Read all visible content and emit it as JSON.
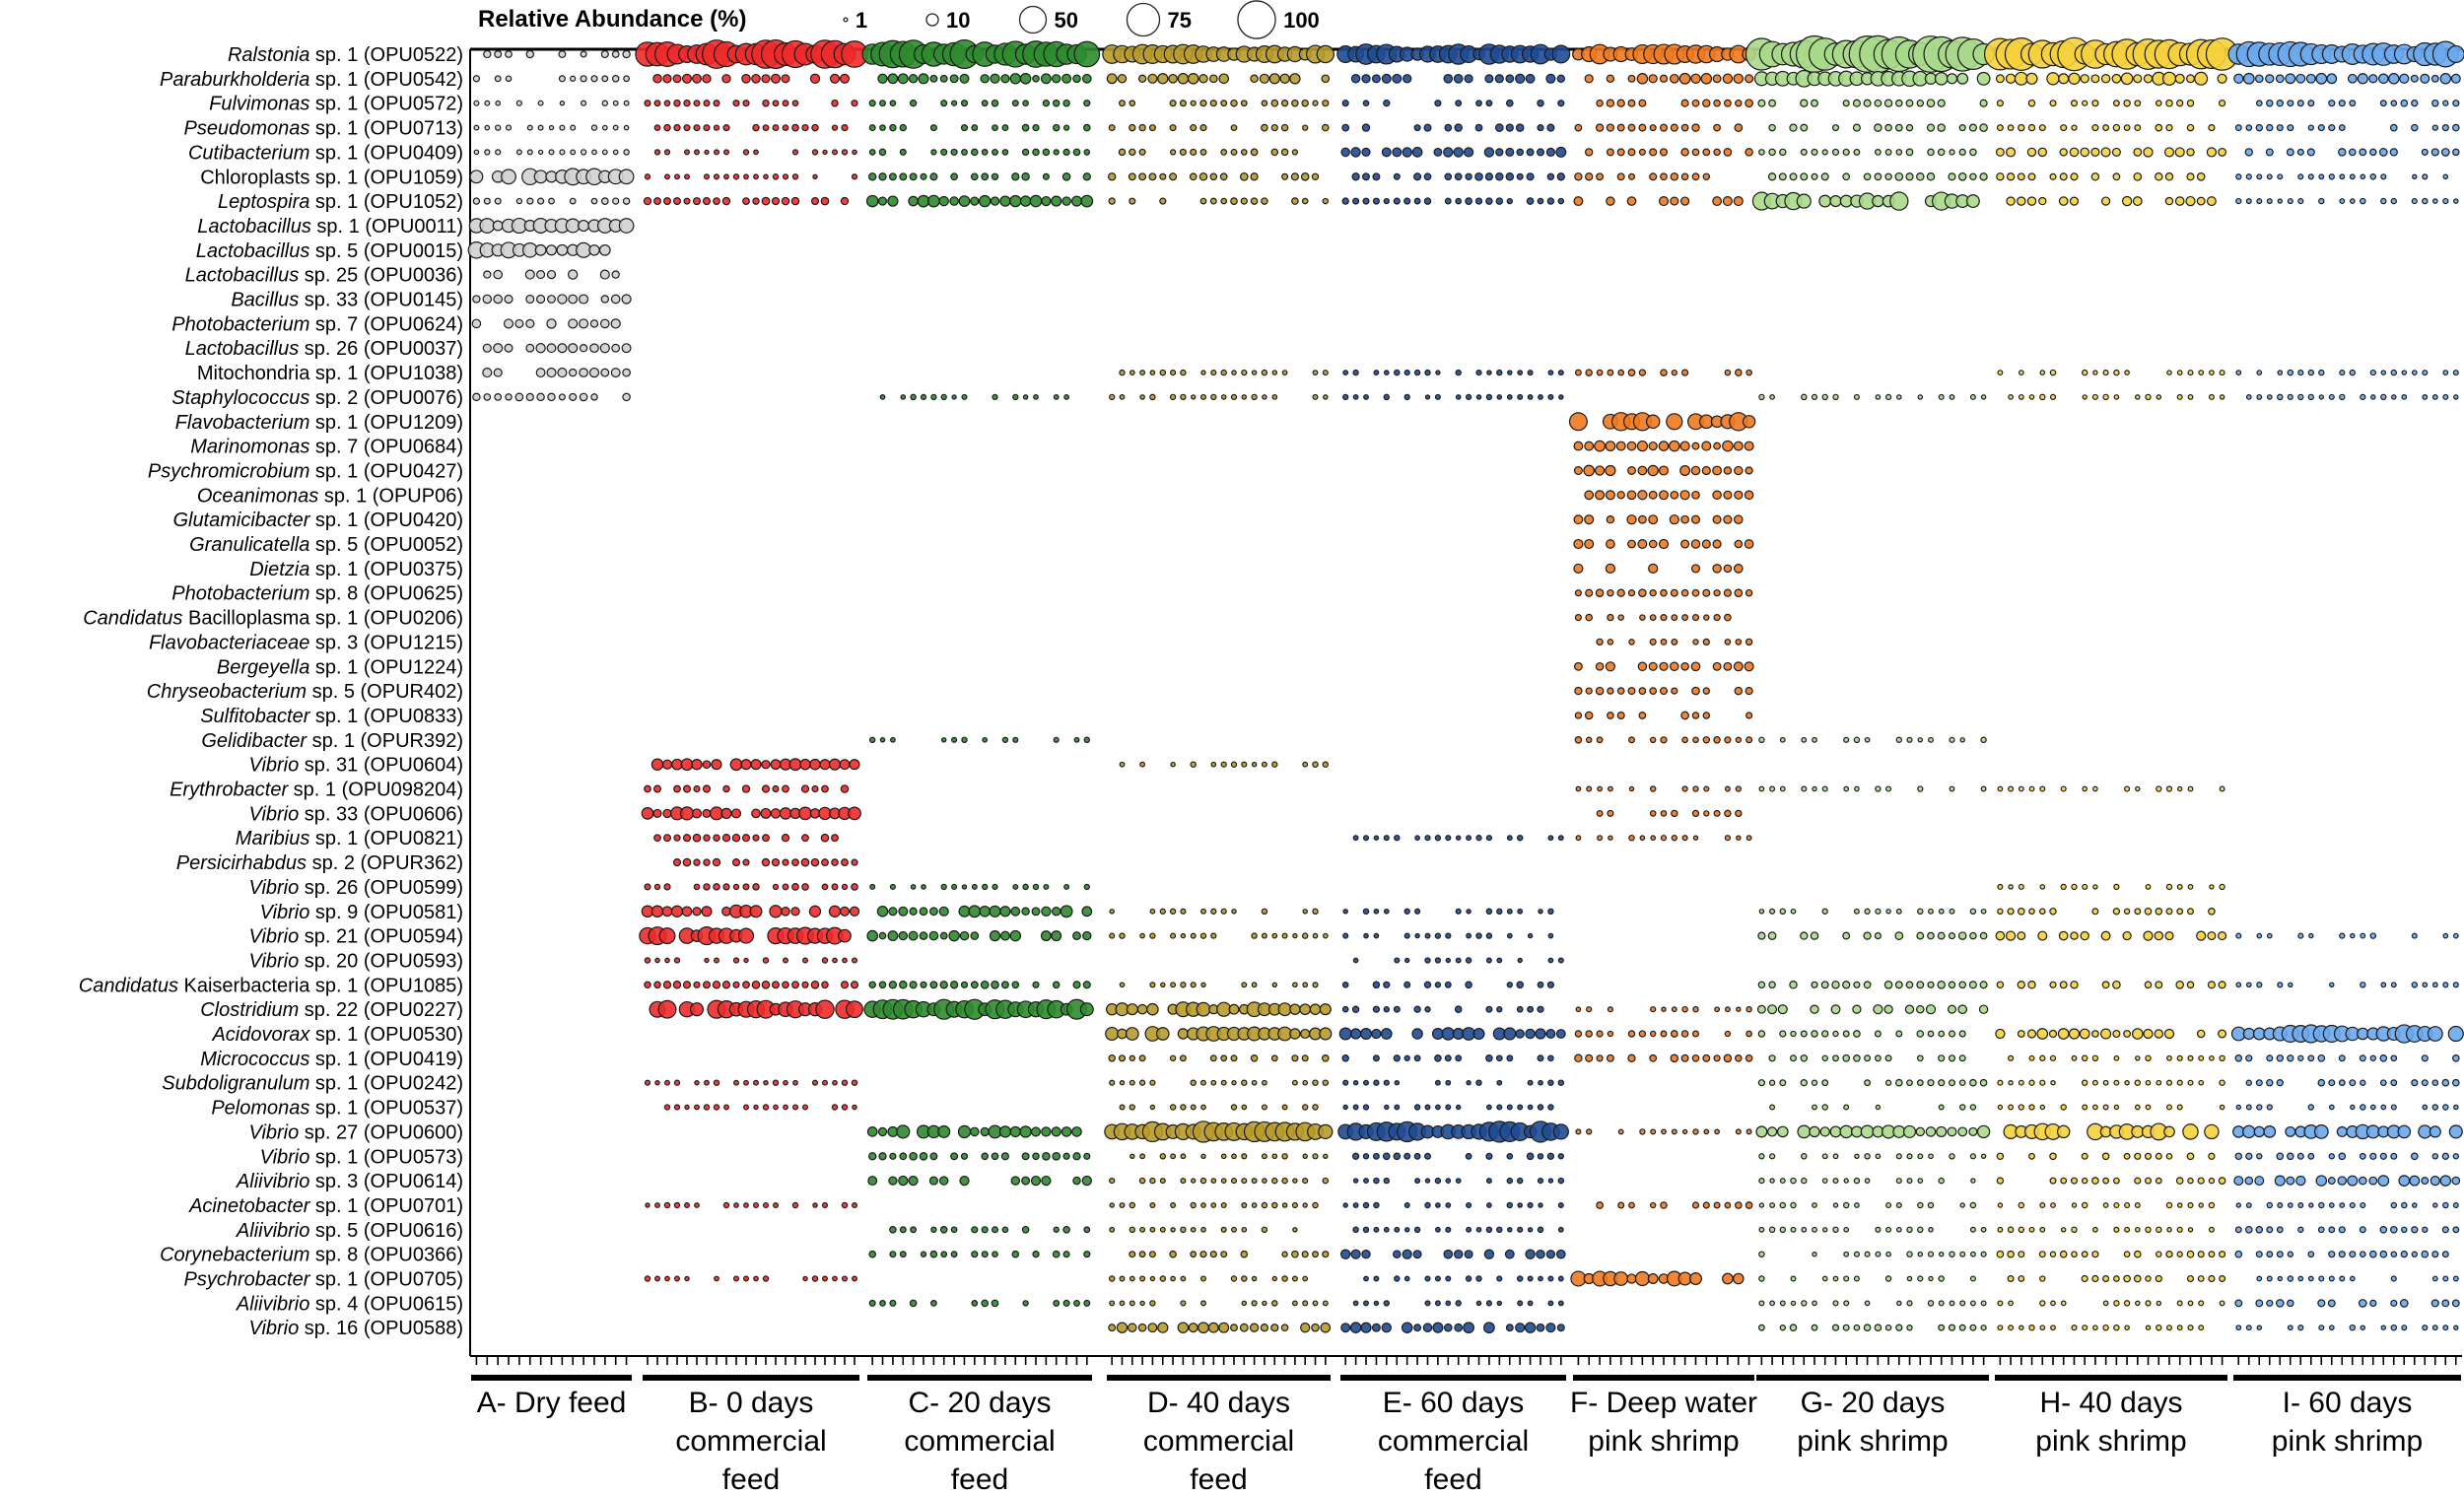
{
  "chart_data": {
    "type": "bubble",
    "legend": {
      "title": "Relative Abundance (%)",
      "sizes": [
        1,
        10,
        50,
        75,
        100
      ],
      "placement": "top"
    },
    "groups": [
      {
        "id": "A",
        "lines": [
          "A- Dry feed"
        ],
        "color": "#d0d0d0",
        "n": 15
      },
      {
        "id": "B",
        "lines": [
          "B- 0 days",
          "commercial",
          "feed"
        ],
        "color": "#ee2a2a",
        "n": 22
      },
      {
        "id": "C",
        "lines": [
          "C- 20 days",
          "commercial",
          "feed"
        ],
        "color": "#2e8b2e",
        "n": 22
      },
      {
        "id": "D",
        "lines": [
          "D- 40 days",
          "commercial",
          "feed"
        ],
        "color": "#b89b2a",
        "n": 22
      },
      {
        "id": "E",
        "lines": [
          "E- 60 days",
          "commercial",
          "feed"
        ],
        "color": "#1f4b94",
        "n": 22
      },
      {
        "id": "F",
        "lines": [
          "F- Deep water",
          "pink shrimp"
        ],
        "color": "#f07a1e",
        "n": 17
      },
      {
        "id": "G",
        "lines": [
          "G- 20 days",
          "pink shrimp"
        ],
        "color": "#a8d98a",
        "n": 22
      },
      {
        "id": "H",
        "lines": [
          "H- 40 days",
          "pink shrimp"
        ],
        "color": "#f5d23c",
        "n": 22
      },
      {
        "id": "I",
        "lines": [
          "I- 60 days",
          "pink shrimp"
        ],
        "color": "#6aa8ee",
        "n": 22
      }
    ],
    "taxa": [
      {
        "it": "Ralstonia",
        "rest": " sp. 1 (OPU0522)",
        "p": {
          "A": 2,
          "B": 30,
          "C": 30,
          "D": 15,
          "E": 15,
          "F": 15,
          "G": 50,
          "H": 40,
          "I": 25
        }
      },
      {
        "it": "Paraburkholderia",
        "rest": " sp. 1 (OPU0542)",
        "p": {
          "A": 1.5,
          "B": 3,
          "C": 4,
          "D": 4,
          "E": 3,
          "F": 4,
          "G": 10,
          "H": 6,
          "I": 4
        }
      },
      {
        "it": "Fulvimonas",
        "rest": " sp. 1 (OPU0572)",
        "p": {
          "A": 1,
          "B": 1.5,
          "C": 1.5,
          "D": 1.5,
          "E": 1.5,
          "F": 2,
          "G": 2,
          "H": 1.5,
          "I": 1.5
        }
      },
      {
        "it": "Pseudomonas",
        "rest": " sp. 1 (OPU0713)",
        "p": {
          "A": 1,
          "B": 1.5,
          "C": 1.5,
          "D": 1.5,
          "E": 2,
          "F": 2,
          "G": 2,
          "H": 1.5,
          "I": 1.5
        }
      },
      {
        "it": "Cutibacterium",
        "rest": " sp. 1 (OPU0409)",
        "p": {
          "A": 1,
          "B": 1,
          "C": 1.5,
          "D": 1.5,
          "E": 4,
          "F": 2,
          "G": 1.5,
          "H": 3,
          "I": 2
        }
      },
      {
        "it": "",
        "rest": "Chloroplasts sp. 1 (OPU1059)",
        "p": {
          "A": 10,
          "B": 1,
          "C": 2,
          "D": 2,
          "E": 2,
          "F": 2,
          "G": 2,
          "H": 2,
          "I": 1
        }
      },
      {
        "it": "Leptospira",
        "rest": " sp. 1 (OPU1052)",
        "p": {
          "A": 1.5,
          "B": 2,
          "C": 5,
          "D": 1.5,
          "E": 1.5,
          "F": 3,
          "G": 12,
          "H": 3,
          "I": 1
        }
      },
      {
        "it": "Lactobacillus",
        "rest": " sp. 1 (OPU0011)",
        "p": {
          "A": 8
        }
      },
      {
        "it": "Lactobacillus",
        "rest": " sp. 5 (OPU0015)",
        "p": {
          "A": 10
        }
      },
      {
        "it": "Lactobacillus",
        "rest": " sp. 25 (OPU0036)",
        "p": {
          "A": 3
        }
      },
      {
        "it": "Bacillus",
        "rest": " sp. 33 (OPU0145)",
        "p": {
          "A": 3
        }
      },
      {
        "it": "Photobacterium",
        "rest": " sp. 7 (OPU0624)",
        "p": {
          "A": 3
        }
      },
      {
        "it": "Lactobacillus",
        "rest": " sp. 26 (OPU0037)",
        "p": {
          "A": 3
        }
      },
      {
        "it": "",
        "rest": "Mitochondria sp. 1 (OPU1038)",
        "p": {
          "A": 3,
          "D": 1,
          "E": 1,
          "F": 1.5,
          "H": 1,
          "I": 1
        }
      },
      {
        "it": "Staphylococcus",
        "rest": " sp. 2 (OPU0076)",
        "p": {
          "A": 2,
          "C": 1,
          "D": 1,
          "E": 1,
          "G": 1,
          "H": 1,
          "I": 1
        }
      },
      {
        "it": "Flavobacterium",
        "rest": "  sp. 1 (OPU1209)",
        "p": {
          "F": 12
        }
      },
      {
        "it": "Marinomonas",
        "rest": "  sp. 7 (OPU0684)",
        "p": {
          "F": 4
        }
      },
      {
        "it": "Psychromicrobium",
        "rest": " sp. 1 (OPU0427)",
        "p": {
          "F": 4
        }
      },
      {
        "it": "Oceanimonas",
        "rest": "  sp. 1 (OPUP06)",
        "p": {
          "F": 3
        }
      },
      {
        "it": "Glutamicibacter",
        "rest": "  sp. 1 (OPU0420)",
        "p": {
          "F": 3
        }
      },
      {
        "it": "Granulicatella",
        "rest": " sp. 5 (OPU0052)",
        "p": {
          "F": 3
        }
      },
      {
        "it": "Dietzia",
        "rest": " sp. 1 (OPU0375)",
        "p": {
          "F": 3
        }
      },
      {
        "it": "Photobacterium",
        "rest": " sp. 8 (OPU0625)",
        "p": {
          "F": 2
        }
      },
      {
        "it": "Candidatus",
        "rest": " Bacilloplasma sp. 1 (OPU0206)",
        "p": {
          "F": 1.5
        }
      },
      {
        "it": "Flavobacteriaceae",
        "rest": " sp. 3 (OPU1215)",
        "p": {
          "F": 1.5
        }
      },
      {
        "it": "Bergeyella",
        "rest": " sp. 1 (OPU1224)",
        "p": {
          "F": 3
        }
      },
      {
        "it": "Chryseobacterium",
        "rest": " sp. 5 (OPUR402)",
        "p": {
          "F": 2
        }
      },
      {
        "it": "Sulfitobacter",
        "rest": " sp. 1 (OPU0833)",
        "p": {
          "F": 2
        }
      },
      {
        "it": "Gelidibacter",
        "rest": " sp. 1 (OPUR392)",
        "p": {
          "C": 1,
          "F": 1.5,
          "G": 1
        }
      },
      {
        "it": "Vibrio",
        "rest": " sp. 31 (OPU0604)",
        "p": {
          "B": 5,
          "D": 1
        }
      },
      {
        "it": "Erythrobacter",
        "rest": " sp. 1 (OPU098204)",
        "p": {
          "B": 2,
          "F": 1,
          "G": 1,
          "H": 1
        }
      },
      {
        "it": "Vibrio",
        "rest": " sp. 33 (OPU0606)",
        "p": {
          "B": 6,
          "F": 1.5
        }
      },
      {
        "it": "Maribius",
        "rest": " sp. 1 (OPU0821)",
        "p": {
          "B": 2,
          "E": 1,
          "F": 1
        }
      },
      {
        "it": "Persicirhabdus",
        "rest": " sp. 2 (OPUR362)",
        "p": {
          "B": 2
        }
      },
      {
        "it": "Vibrio",
        "rest": " sp. 26 (OPU0599)",
        "p": {
          "B": 1.5,
          "C": 1,
          "H": 1
        }
      },
      {
        "it": "Vibrio",
        "rest": " sp. 9 (OPU0581)",
        "p": {
          "B": 6,
          "C": 5,
          "D": 1,
          "E": 1,
          "G": 1,
          "H": 1.5
        }
      },
      {
        "it": "Vibrio",
        "rest": " sp. 21 (OPU0594)",
        "p": {
          "B": 12,
          "C": 4,
          "D": 1,
          "E": 1,
          "G": 2,
          "H": 3,
          "I": 1
        }
      },
      {
        "it": "Vibrio",
        "rest": " sp. 20 (OPU0593)",
        "p": {
          "B": 1,
          "E": 1
        }
      },
      {
        "it": "Candidatus",
        "rest": " Kaiserbacteria sp. 1 (OPU1085)",
        "p": {
          "B": 2,
          "C": 2,
          "D": 1,
          "E": 1.5,
          "G": 2,
          "H": 2,
          "I": 1
        }
      },
      {
        "it": "Clostridium",
        "rest": " sp. 22 (OPU0227)",
        "p": {
          "B": 12,
          "C": 15,
          "D": 8,
          "E": 1.5,
          "F": 1,
          "G": 3
        }
      },
      {
        "it": "Acidovorax",
        "rest": " sp. 1 (OPU0530)",
        "p": {
          "D": 8,
          "E": 6,
          "F": 1.5,
          "G": 1.5,
          "H": 4,
          "I": 12
        }
      },
      {
        "it": "Micrococcus",
        "rest": " sp. 1 (OPU0419)",
        "p": {
          "D": 1.5,
          "E": 1.5,
          "F": 2,
          "G": 1.5,
          "H": 1,
          "I": 1.5
        }
      },
      {
        "it": "Subdoligranulum",
        "rest": " sp. 1 (OPU0242)",
        "p": {
          "B": 1,
          "D": 1,
          "E": 1,
          "G": 1.5,
          "H": 1,
          "I": 1.5
        }
      },
      {
        "it": "Pelomonas",
        "rest": " sp. 1 (OPU0537)",
        "p": {
          "B": 1,
          "D": 1,
          "E": 1,
          "G": 1,
          "H": 1,
          "I": 1
        }
      },
      {
        "it": "Vibrio",
        "rest": " sp. 27 (OPU0600)",
        "p": {
          "C": 6,
          "D": 16,
          "E": 16,
          "F": 1,
          "G": 6,
          "H": 10,
          "I": 8
        }
      },
      {
        "it": "Vibrio",
        "rest": " sp. 1 (OPU0573)",
        "p": {
          "C": 2,
          "D": 1,
          "E": 1.5,
          "G": 1,
          "H": 1.5,
          "I": 1.5
        }
      },
      {
        "it": "Aliivibrio",
        "rest": " sp. 3 (OPU0614)",
        "p": {
          "C": 3,
          "D": 1,
          "E": 1,
          "G": 1,
          "H": 1.5,
          "I": 4
        }
      },
      {
        "it": "Acinetobacter",
        "rest": " sp. 1 (OPU0701)",
        "p": {
          "B": 1,
          "D": 1,
          "E": 1,
          "F": 1.5,
          "G": 1,
          "H": 1,
          "I": 1
        }
      },
      {
        "it": "Aliivibrio",
        "rest": " sp. 5 (OPU0616)",
        "p": {
          "C": 1.5,
          "D": 1,
          "E": 1,
          "G": 1,
          "H": 1,
          "I": 1.5
        }
      },
      {
        "it": "Corynebacterium",
        "rest": " sp. 8 (OPU0366)",
        "p": {
          "C": 1.5,
          "D": 1.5,
          "E": 3,
          "G": 1,
          "H": 1.5,
          "I": 1.5
        }
      },
      {
        "it": "Psychrobacter",
        "rest": " sp. 1 (OPU0705)",
        "p": {
          "B": 1,
          "D": 1,
          "E": 1,
          "F": 8,
          "G": 1,
          "H": 1.5,
          "I": 1
        }
      },
      {
        "it": "Aliivibrio",
        "rest": " sp. 4 (OPU0615)",
        "p": {
          "C": 1.5,
          "D": 1,
          "E": 1,
          "G": 1,
          "H": 1,
          "I": 2
        }
      },
      {
        "it": "Vibrio",
        "rest": " sp. 16 (OPU0588)",
        "p": {
          "D": 4,
          "E": 4,
          "G": 1.5,
          "H": 1,
          "I": 1
        }
      }
    ]
  }
}
